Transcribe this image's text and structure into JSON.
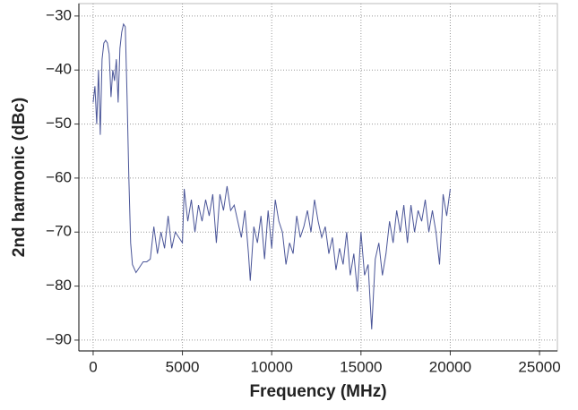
{
  "chart_data": {
    "type": "line",
    "xlabel": "Frequency (MHz)",
    "ylabel": "2nd harmonic (dBc)",
    "xlim": [
      -800,
      26000
    ],
    "ylim": [
      -92,
      -27.7
    ],
    "xticks": [
      0,
      5000,
      10000,
      15000,
      20000,
      25000
    ],
    "yticks": [
      {
        "value": -30,
        "label": "−30"
      },
      {
        "value": -40,
        "label": "−40"
      },
      {
        "value": -50,
        "label": "−50"
      },
      {
        "value": -60,
        "label": "−60"
      },
      {
        "value": -70,
        "label": "−70"
      },
      {
        "value": -80,
        "label": "−80"
      },
      {
        "value": -90,
        "label": "−90"
      }
    ],
    "grid": true,
    "x": [
      0,
      100,
      200,
      300,
      400,
      500,
      600,
      700,
      800,
      900,
      1000,
      1100,
      1200,
      1300,
      1400,
      1500,
      1600,
      1700,
      1800,
      1900,
      2000,
      2100,
      2200,
      2400,
      2600,
      2800,
      3000,
      3200,
      3400,
      3600,
      3800,
      4000,
      4200,
      4400,
      4600,
      4800,
      5000,
      5100,
      5300,
      5500,
      5700,
      5900,
      6100,
      6300,
      6500,
      6700,
      6900,
      7100,
      7300,
      7500,
      7700,
      7900,
      8100,
      8300,
      8500,
      8700,
      8800,
      9000,
      9200,
      9400,
      9600,
      9800,
      10000,
      10200,
      10400,
      10600,
      10800,
      11000,
      11200,
      11400,
      11600,
      11800,
      12000,
      12200,
      12400,
      12600,
      12800,
      13000,
      13200,
      13400,
      13600,
      13800,
      14000,
      14200,
      14400,
      14600,
      14800,
      15000,
      15200,
      15400,
      15600,
      15800,
      16000,
      16200,
      16400,
      16600,
      16800,
      17000,
      17200,
      17400,
      17600,
      17800,
      18000,
      18200,
      18400,
      18600,
      18800,
      19000,
      19200,
      19400,
      19600,
      19800,
      20000
    ],
    "series": [
      {
        "name": "2nd harmonic",
        "color": "#4a5598",
        "values": [
          -46,
          -43,
          -50,
          -40,
          -52,
          -38,
          -35,
          -34.5,
          -35,
          -37,
          -45,
          -40,
          -42,
          -38,
          -46,
          -36,
          -33,
          -31.5,
          -32,
          -45,
          -60,
          -72,
          -76,
          -77.5,
          -76.5,
          -75.5,
          -75.5,
          -75,
          -69,
          -74,
          -70,
          -73,
          -67,
          -73,
          -70,
          -71,
          -72,
          -62,
          -68,
          -64,
          -70,
          -65,
          -68,
          -64,
          -67,
          -63,
          -72,
          -63,
          -66,
          -61.5,
          -66,
          -65,
          -68,
          -71,
          -66,
          -74,
          -79,
          -69,
          -72,
          -67,
          -75,
          -66,
          -73,
          -64,
          -68,
          -70,
          -76,
          -72,
          -74,
          -67,
          -71,
          -69,
          -66,
          -70,
          -64,
          -68,
          -71,
          -69,
          -74,
          -71,
          -77,
          -73,
          -76,
          -70,
          -78,
          -74,
          -81,
          -70,
          -78,
          -76,
          -88,
          -75,
          -72,
          -78,
          -74,
          -68,
          -72,
          -66,
          -70,
          -65,
          -72,
          -65,
          -70,
          -66,
          -68,
          -64,
          -70,
          -66,
          -70,
          -76,
          -63,
          -67,
          -62
        ]
      }
    ]
  }
}
